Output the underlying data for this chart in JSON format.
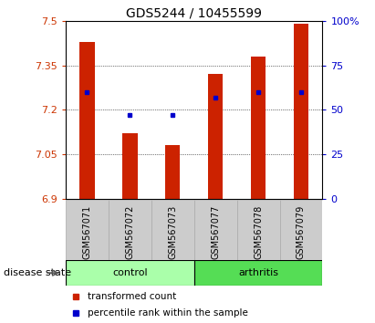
{
  "title": "GDS5244 / 10455599",
  "samples": [
    "GSM567071",
    "GSM567072",
    "GSM567073",
    "GSM567077",
    "GSM567078",
    "GSM567079"
  ],
  "groups": [
    "control",
    "control",
    "control",
    "arthritis",
    "arthritis",
    "arthritis"
  ],
  "bar_values": [
    7.43,
    7.12,
    7.08,
    7.32,
    7.38,
    7.49
  ],
  "percentile_values": [
    60,
    47,
    47,
    57,
    60,
    60
  ],
  "ymin": 6.9,
  "ymax": 7.5,
  "yticks": [
    6.9,
    7.05,
    7.2,
    7.35,
    7.5
  ],
  "y2ticks": [
    0,
    25,
    50,
    75,
    100
  ],
  "bar_color": "#cc2200",
  "percentile_color": "#0000cc",
  "control_color": "#aaffaa",
  "arthritis_color": "#55dd55",
  "tick_label_color_left": "#cc3300",
  "tick_label_color_right": "#0000cc",
  "group_label": "disease state",
  "legend_bar_label": "transformed count",
  "legend_pct_label": "percentile rank within the sample",
  "bar_width": 0.35
}
